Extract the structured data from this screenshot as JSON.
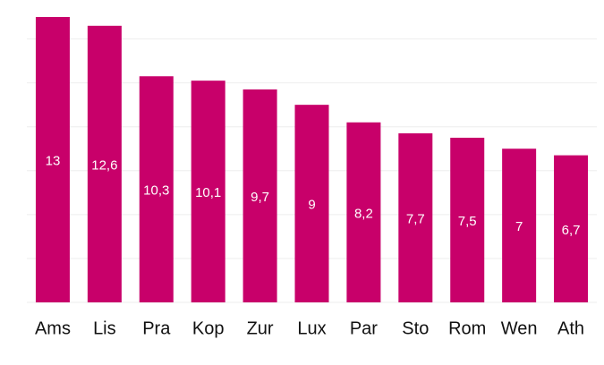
{
  "chart_data": {
    "type": "bar",
    "categories": [
      "Ams",
      "Lis",
      "Pra",
      "Kop",
      "Zur",
      "Lux",
      "Par",
      "Sto",
      "Rom",
      "Wen",
      "Ath"
    ],
    "values": [
      13,
      12.6,
      10.3,
      10.1,
      9.7,
      9,
      8.2,
      7.7,
      7.5,
      7,
      6.7
    ],
    "value_labels": [
      "13",
      "12,6",
      "10,3",
      "10,1",
      "9,7",
      "9",
      "8,2",
      "7,7",
      "7,5",
      "7",
      "6,7"
    ],
    "color": "#c8006a",
    "ylim": [
      0,
      13
    ],
    "yticks": [
      0,
      2,
      4,
      6,
      8,
      10,
      12
    ],
    "grid": true
  }
}
